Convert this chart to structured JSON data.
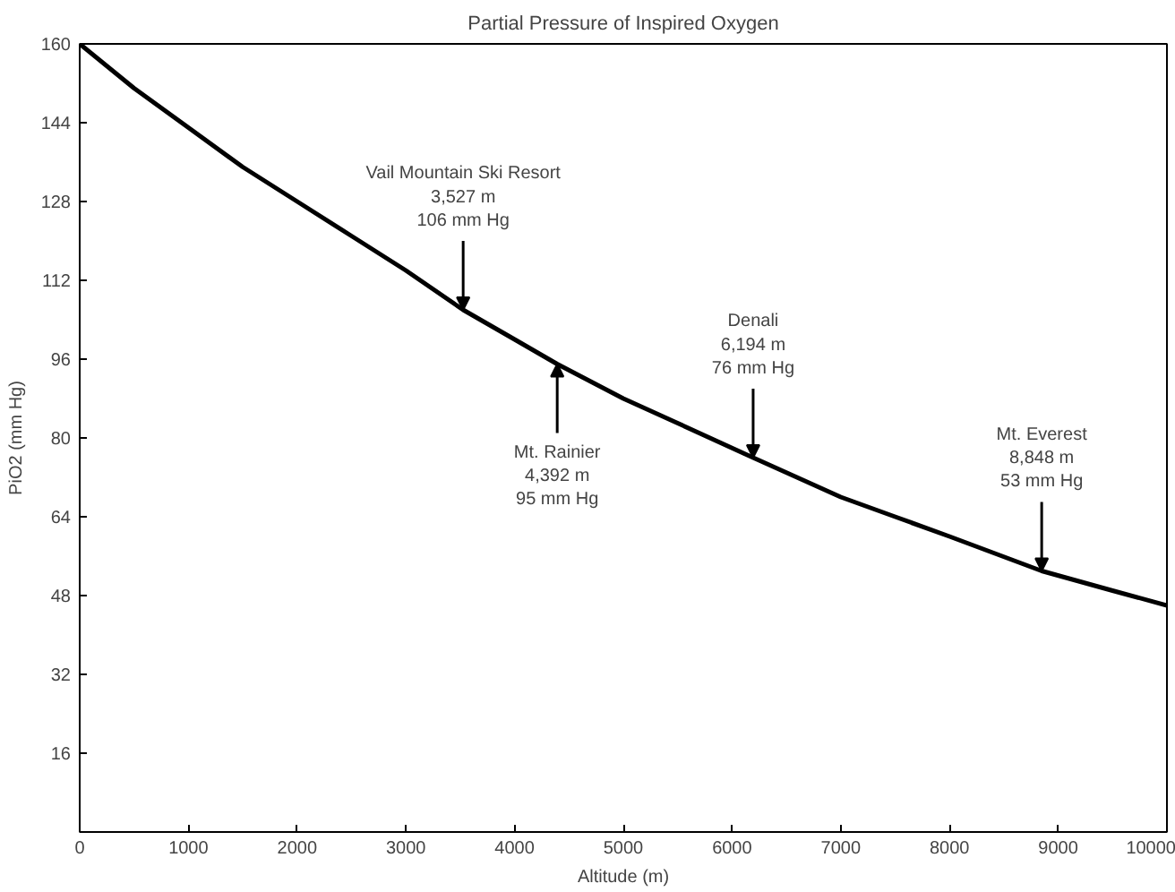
{
  "chart_data": {
    "type": "line",
    "title": "Partial Pressure of Inspired Oxygen",
    "xlabel": "Altitude (m)",
    "ylabel": "PiO2 (mm Hg)",
    "x": [
      0,
      500,
      1000,
      1500,
      2000,
      2500,
      3000,
      3527,
      4000,
      4392,
      5000,
      5500,
      6194,
      7000,
      7500,
      8000,
      8848,
      9500,
      10000
    ],
    "series": [
      {
        "color": "#000000",
        "values": [
          160,
          151,
          143,
          135,
          128,
          121,
          114,
          106,
          100,
          95,
          88,
          83,
          76,
          68,
          64,
          60,
          53,
          49,
          46
        ]
      }
    ],
    "xlim": [
      0,
      10000
    ],
    "xticks": [
      0,
      1000,
      2000,
      3000,
      4000,
      5000,
      6000,
      7000,
      8000,
      9000,
      10000
    ],
    "ylim": [
      0,
      160
    ],
    "yticks": [
      16,
      32,
      48,
      64,
      80,
      96,
      112,
      128,
      144,
      160
    ],
    "grid": false,
    "marker": "none",
    "line_style": "solid",
    "annotations": [
      {
        "text": "Vail Mountain Ski Resort\n3,527 m\n106 mm Hg",
        "x": 3527,
        "y": 106
      },
      {
        "text": "Mt. Rainier\n4,392 m\n95 mm Hg",
        "x": 4392,
        "y": 95
      },
      {
        "text": "Denali\n6,194 m\n76 mm Hg",
        "x": 6194,
        "y": 76
      },
      {
        "text": "Mt. Everest\n8,848 m\n53 mm Hg",
        "x": 8848,
        "y": 53
      }
    ]
  }
}
